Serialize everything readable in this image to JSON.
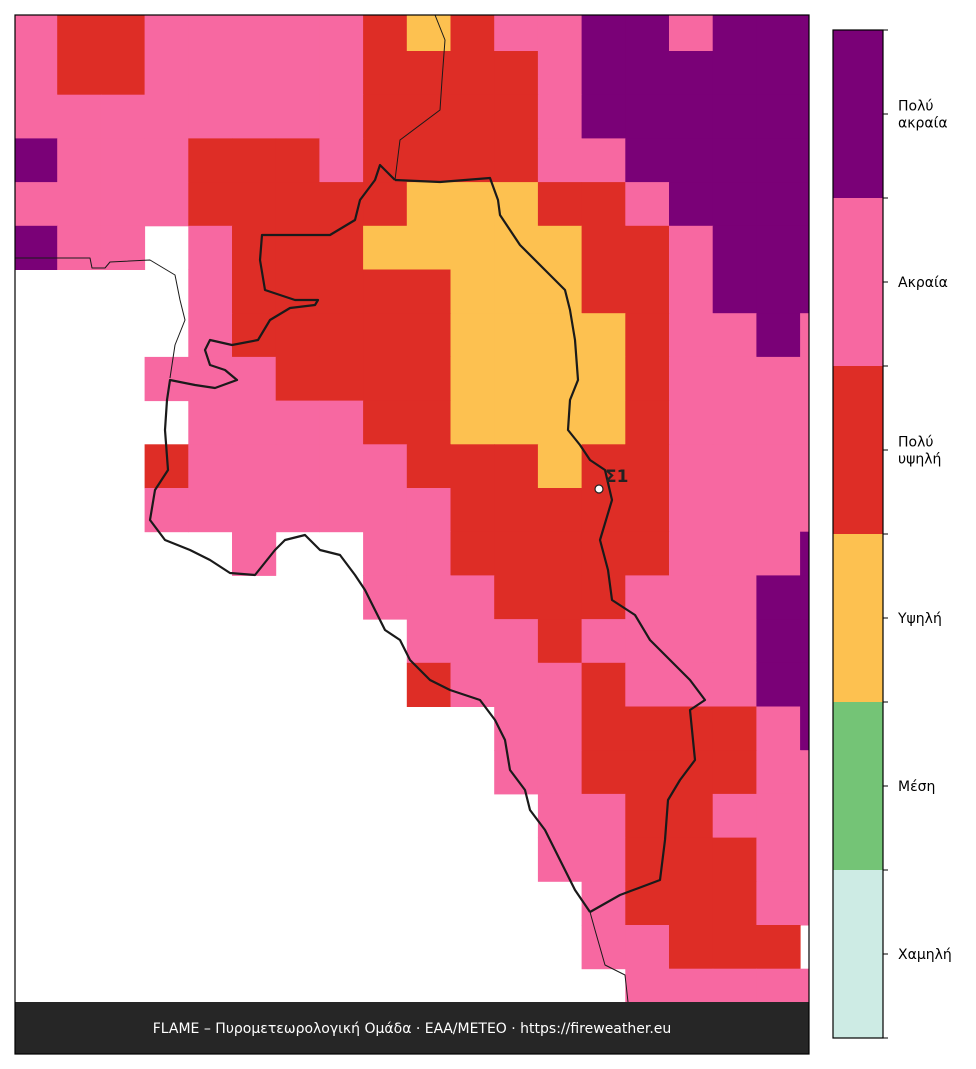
{
  "map": {
    "classes": [
      {
        "label": [
          "Χαμηλή"
        ],
        "color": "#cdebe4"
      },
      {
        "label": [
          "Μέση"
        ],
        "color": "#74c476"
      },
      {
        "label": [
          "Υψηλή"
        ],
        "color": "#fdc150"
      },
      {
        "label": [
          "Πολύ",
          "υψηλή"
        ],
        "color": "#de2d26"
      },
      {
        "label": [
          "Ακραία"
        ],
        "color": "#f768a1"
      },
      {
        "label": [
          "Πολύ",
          "ακραία"
        ],
        "color": "#7a0177"
      }
    ],
    "grid": [
      [
        4,
        3,
        3,
        4,
        4,
        4,
        4,
        4,
        3,
        2,
        3,
        4,
        4,
        5,
        5,
        4,
        5,
        5,
        5
      ],
      [
        4,
        3,
        3,
        4,
        4,
        4,
        4,
        4,
        3,
        3,
        3,
        3,
        4,
        5,
        5,
        5,
        5,
        5,
        5
      ],
      [
        4,
        4,
        4,
        4,
        4,
        4,
        4,
        4,
        3,
        3,
        3,
        3,
        4,
        5,
        5,
        5,
        5,
        5,
        5
      ],
      [
        5,
        4,
        4,
        4,
        3,
        3,
        3,
        4,
        3,
        3,
        3,
        3,
        4,
        4,
        5,
        5,
        5,
        5,
        5
      ],
      [
        4,
        4,
        4,
        4,
        3,
        3,
        3,
        3,
        3,
        2,
        2,
        2,
        3,
        3,
        4,
        5,
        5,
        5,
        5
      ],
      [
        5,
        4,
        4,
        null,
        4,
        3,
        3,
        3,
        2,
        2,
        2,
        2,
        2,
        3,
        3,
        4,
        5,
        5,
        5
      ],
      [
        null,
        null,
        null,
        null,
        4,
        3,
        3,
        3,
        3,
        3,
        2,
        2,
        2,
        3,
        3,
        4,
        5,
        5,
        5
      ],
      [
        null,
        null,
        null,
        null,
        4,
        3,
        3,
        3,
        3,
        3,
        2,
        2,
        2,
        2,
        3,
        4,
        4,
        5,
        4
      ],
      [
        null,
        null,
        null,
        4,
        4,
        4,
        3,
        3,
        3,
        3,
        2,
        2,
        2,
        2,
        3,
        4,
        4,
        4,
        4
      ],
      [
        null,
        null,
        null,
        null,
        4,
        4,
        4,
        4,
        3,
        3,
        2,
        2,
        2,
        2,
        3,
        4,
        4,
        4,
        4
      ],
      [
        null,
        null,
        null,
        3,
        4,
        4,
        4,
        4,
        4,
        3,
        3,
        3,
        2,
        3,
        3,
        4,
        4,
        4,
        4
      ],
      [
        null,
        null,
        null,
        4,
        4,
        4,
        4,
        4,
        4,
        4,
        3,
        3,
        3,
        3,
        3,
        4,
        4,
        4,
        4
      ],
      [
        null,
        null,
        null,
        null,
        null,
        4,
        null,
        null,
        4,
        4,
        3,
        3,
        3,
        3,
        3,
        4,
        4,
        4,
        5
      ],
      [
        null,
        null,
        null,
        null,
        null,
        null,
        null,
        null,
        4,
        4,
        4,
        3,
        3,
        3,
        4,
        4,
        4,
        5,
        5
      ],
      [
        null,
        null,
        null,
        null,
        null,
        null,
        null,
        null,
        null,
        4,
        4,
        4,
        3,
        4,
        4,
        4,
        4,
        5,
        5
      ],
      [
        null,
        null,
        null,
        null,
        null,
        null,
        null,
        null,
        null,
        3,
        4,
        4,
        4,
        3,
        4,
        4,
        4,
        5,
        5
      ],
      [
        null,
        null,
        null,
        null,
        null,
        null,
        null,
        null,
        null,
        null,
        null,
        4,
        4,
        3,
        3,
        3,
        3,
        4,
        5
      ],
      [
        null,
        null,
        null,
        null,
        null,
        null,
        null,
        null,
        null,
        null,
        null,
        4,
        4,
        3,
        3,
        3,
        3,
        4,
        4
      ],
      [
        null,
        null,
        null,
        null,
        null,
        null,
        null,
        null,
        null,
        null,
        null,
        null,
        4,
        4,
        3,
        3,
        4,
        4,
        4
      ],
      [
        null,
        null,
        null,
        null,
        null,
        null,
        null,
        null,
        null,
        null,
        null,
        null,
        4,
        4,
        3,
        3,
        3,
        4,
        4
      ],
      [
        null,
        null,
        null,
        null,
        null,
        null,
        null,
        null,
        null,
        null,
        null,
        null,
        null,
        4,
        3,
        3,
        3,
        4,
        4
      ],
      [
        null,
        null,
        null,
        null,
        null,
        null,
        null,
        null,
        null,
        null,
        null,
        null,
        null,
        4,
        4,
        3,
        3,
        3,
        null
      ],
      [
        null,
        null,
        null,
        null,
        null,
        null,
        null,
        null,
        null,
        null,
        null,
        null,
        null,
        null,
        4,
        4,
        4,
        4,
        4
      ]
    ],
    "station": "Σ1",
    "footer": "FLAME – Πυρομετεωρολογική Ομάδα · ΕΑΑ/METEO · https://fireweather.eu"
  }
}
